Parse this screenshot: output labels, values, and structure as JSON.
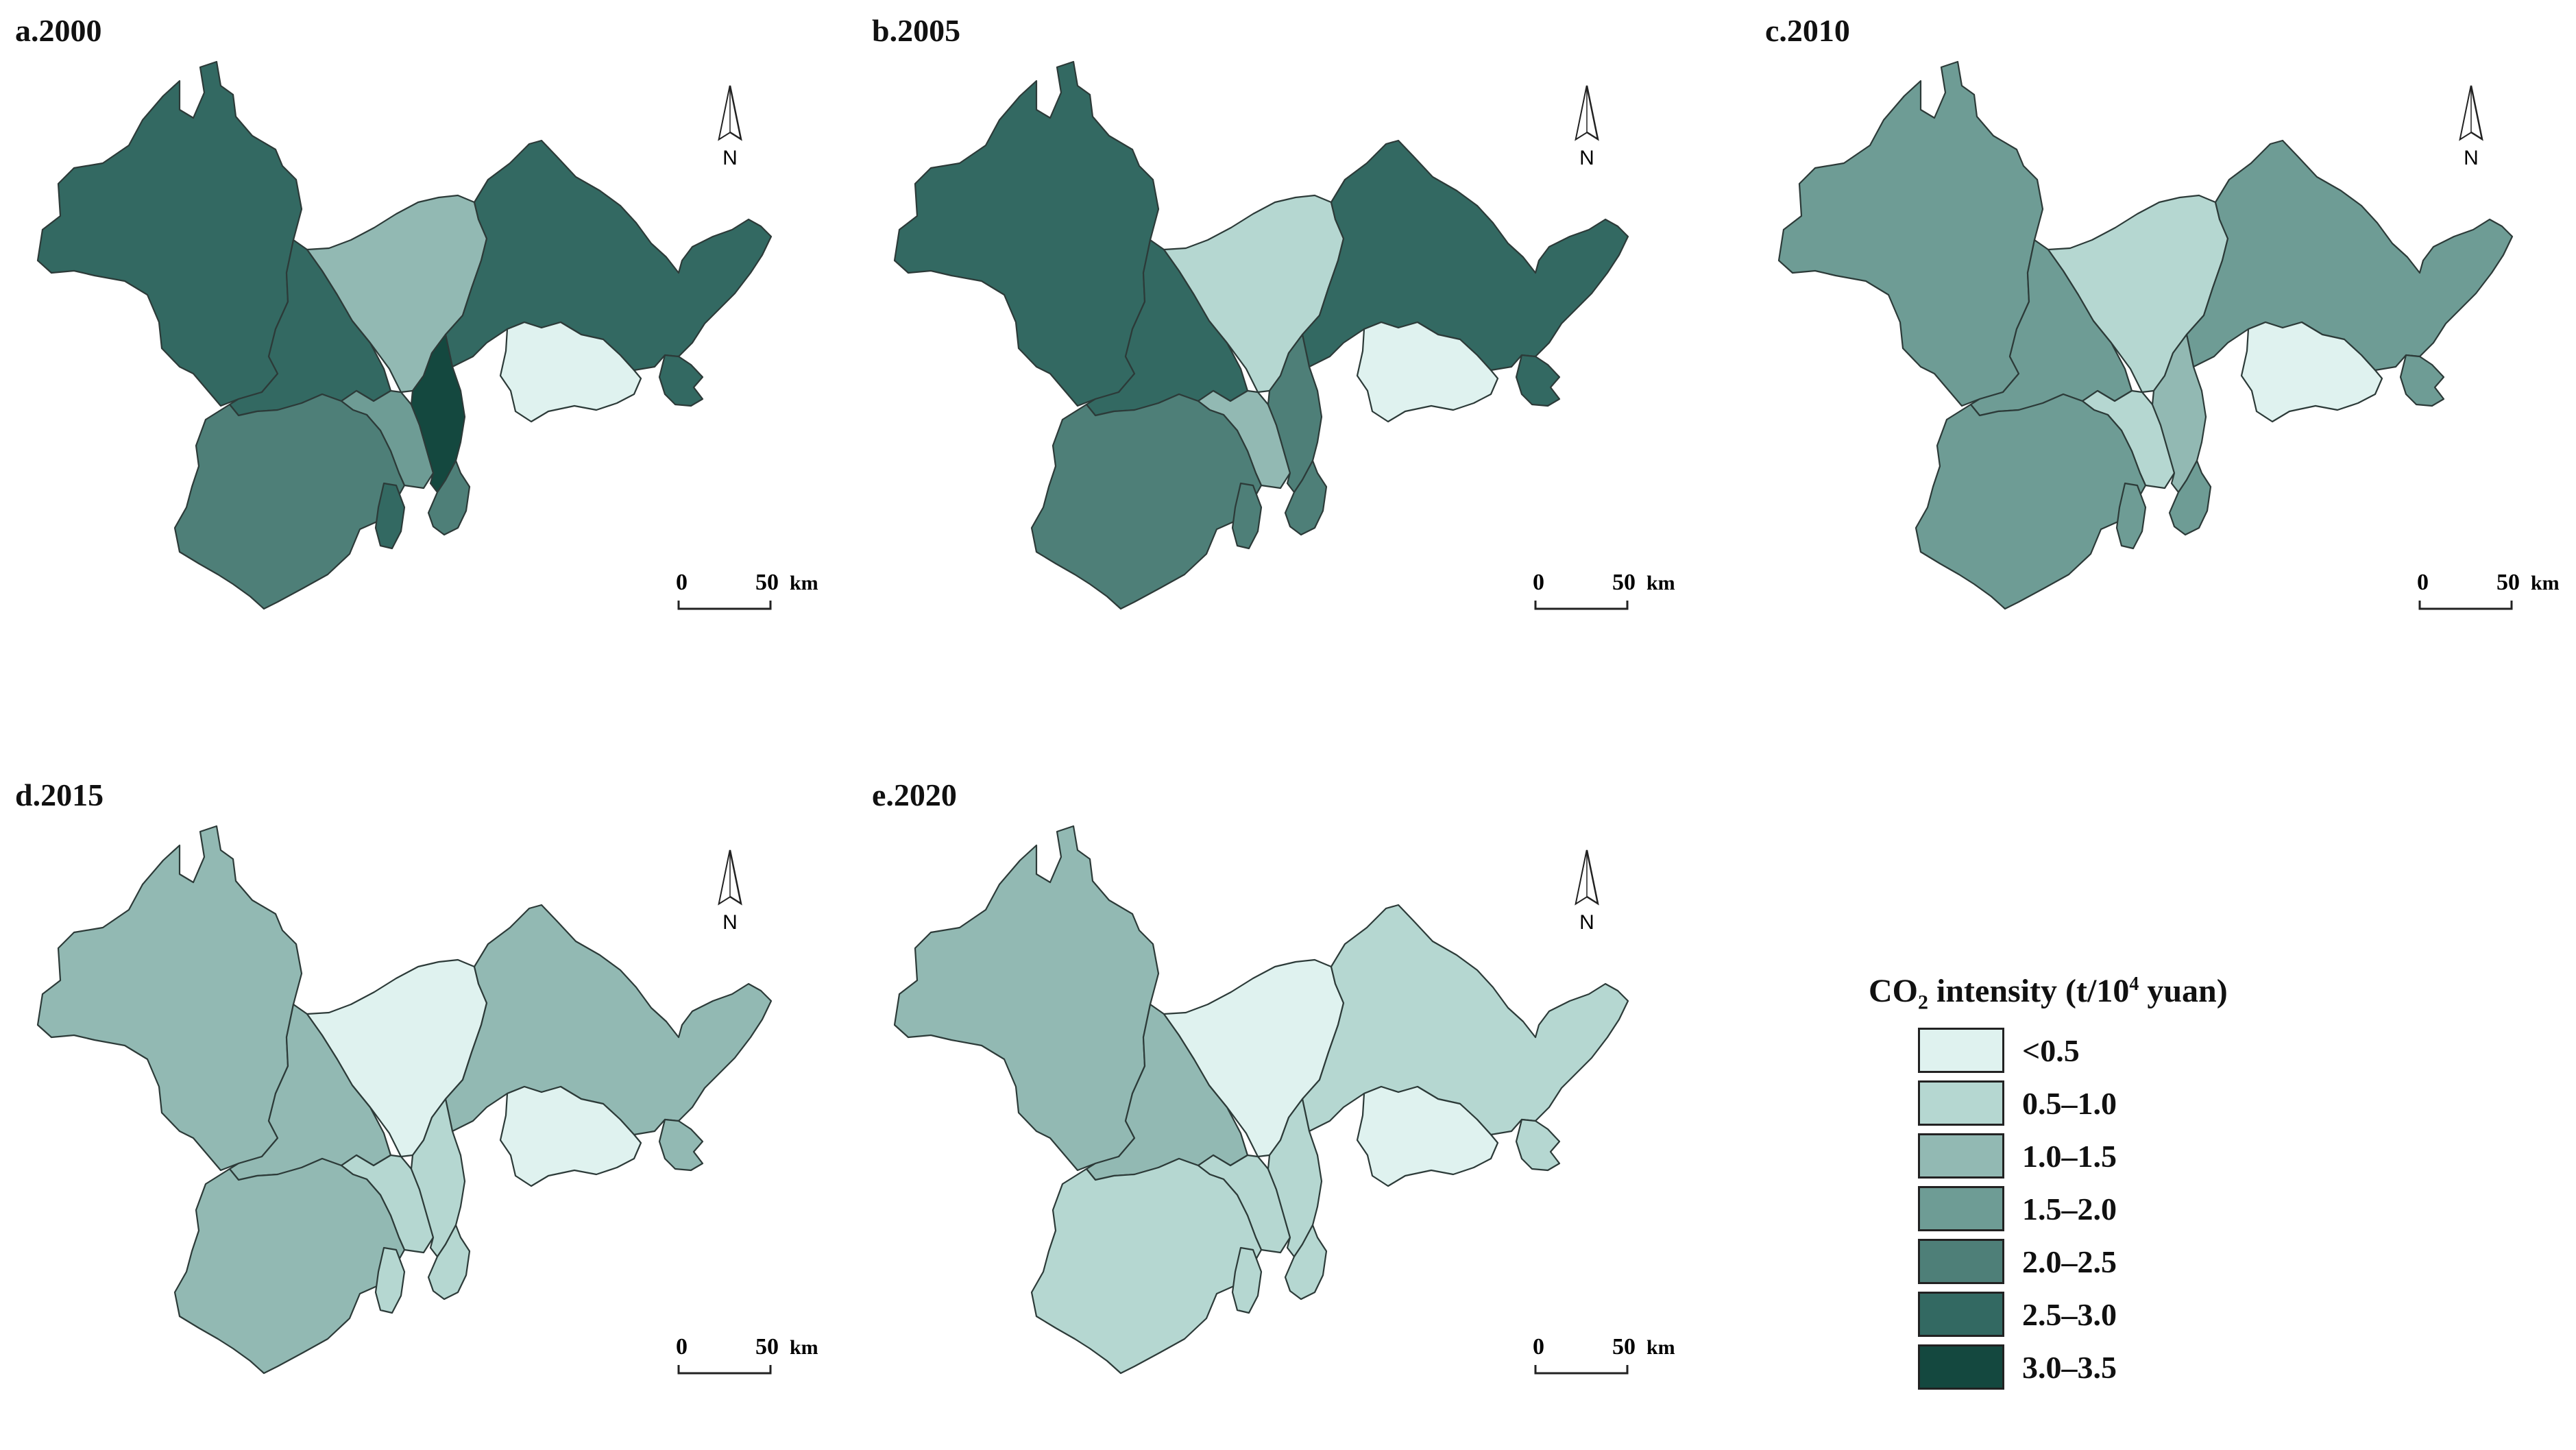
{
  "panels": [
    {
      "title": "a.2000",
      "classes": [
        5,
        5,
        2,
        3,
        5,
        6,
        0,
        5,
        4,
        5,
        4
      ]
    },
    {
      "title": "b.2005",
      "classes": [
        5,
        5,
        1,
        2,
        5,
        4,
        0,
        5,
        4,
        4,
        4
      ]
    },
    {
      "title": "c.2010",
      "classes": [
        3,
        3,
        1,
        1,
        3,
        2,
        0,
        3,
        3,
        3,
        3
      ]
    },
    {
      "title": "d.2015",
      "classes": [
        2,
        2,
        0,
        1,
        2,
        1,
        0,
        2,
        2,
        1,
        1
      ]
    },
    {
      "title": "e.2020",
      "classes": [
        2,
        2,
        0,
        1,
        1,
        1,
        0,
        1,
        1,
        1,
        1
      ]
    }
  ],
  "north_label": "N",
  "scale": {
    "zero": "0",
    "fifty": "50",
    "unit": "km"
  },
  "legend": {
    "title_prefix": "CO",
    "title_sub": "2",
    "title_middle": " intensity (t/10",
    "title_sup": "4",
    "title_suffix": " yuan)",
    "items": [
      {
        "label": "<0.5",
        "color": "#dff2ef"
      },
      {
        "label": "0.5–1.0",
        "color": "#b5d7d1"
      },
      {
        "label": "1.0–1.5",
        "color": "#92b9b3"
      },
      {
        "label": "1.5–2.0",
        "color": "#6e9c95"
      },
      {
        "label": "2.0–2.5",
        "color": "#4e7f78"
      },
      {
        "label": "2.5–3.0",
        "color": "#336962"
      },
      {
        "label": "3.0–3.5",
        "color": "#14483f"
      }
    ]
  }
}
